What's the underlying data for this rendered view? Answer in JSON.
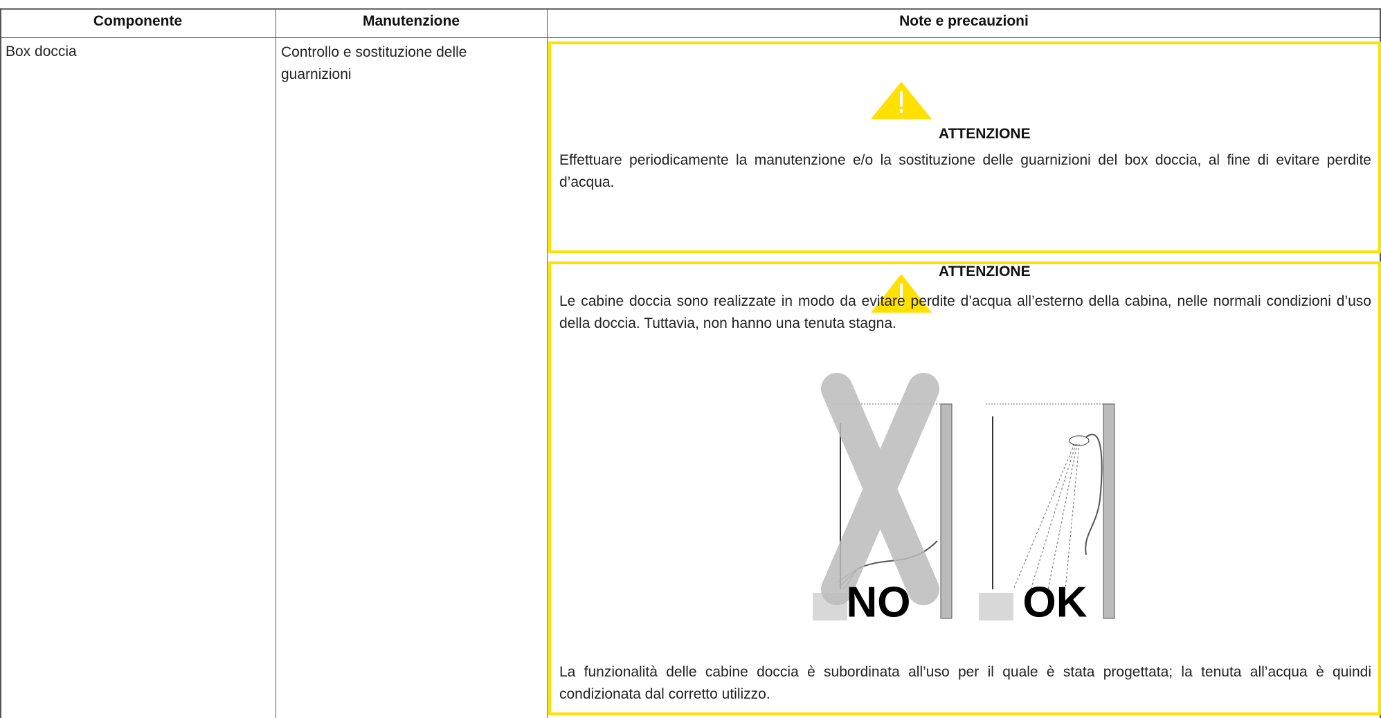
{
  "table": {
    "header": [
      "Componente",
      "Manutenzione",
      "Note e precauzioni"
    ],
    "rows": [
      {
        "component": "Box doccia",
        "maintenance": "Controllo e sostituzione delle guarnizioni",
        "notes": [
          {
            "title": "ATTENZIONE",
            "text": "Effettuare periodicamente la manutenzione e/o la sostituzione delle guarnizioni del box doccia, al fine di evitare perdite d’acqua."
          },
          {
            "title": "ATTENZIONE",
            "text": "Le cabine doccia sono realizzate in modo da evitare perdite d’acqua all’esterno della cabina, nelle normali condizioni d’uso della doccia. Tuttavia, non hanno una tenuta stagna.",
            "figure": [
              "NO",
              "OK"
            ],
            "footer": "La funzionalità delle cabine doccia è subordinata all’uso per il quale è stata progettata; la tenuta all’acqua è quindi condizionata dal corretto utilizzo."
          }
        ]
      }
    ]
  }
}
